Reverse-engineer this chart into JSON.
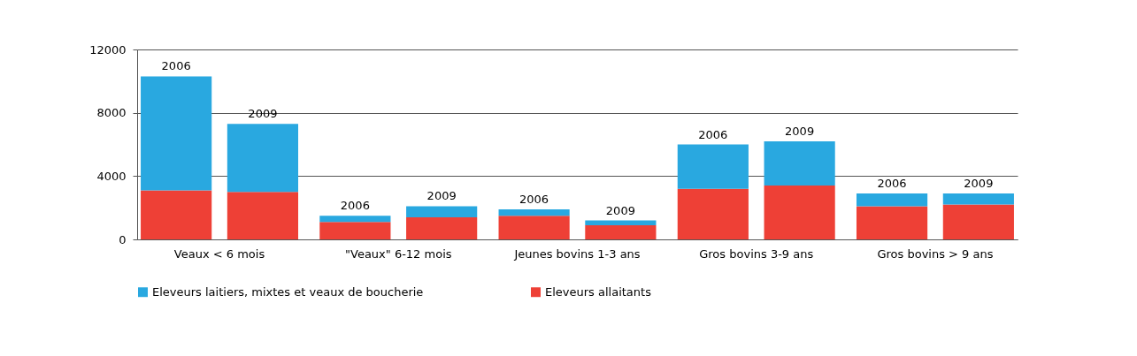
{
  "chart_data": {
    "type": "bar",
    "stacked": true,
    "categories": [
      null,
      null,
      null,
      null,
      null,
      null,
      null,
      null,
      null,
      null
    ],
    "annotations": [
      "Veaux < 6 mois",
      "\"Veaux\" 6-12 mois",
      "Jeunes bovins 1-3 ans",
      "Gros bovins 3-9 ans",
      "Gros bovins > 9 ans",
      "2006",
      "2009",
      "2006",
      "2009",
      "2006",
      "2009",
      "2006",
      "2009",
      "2006",
      "2009"
    ],
    "series": [
      {
        "name": "Eleveurs allaitants",
        "color": "#ee4036",
        "values": [
          3100,
          3000,
          1100,
          1400,
          1500,
          900,
          3200,
          3400,
          2100,
          2200
        ]
      },
      {
        "name": "Eleveurs laitiers, mixtes et veaux de boucherie",
        "color": "#29a8e0",
        "values": [
          7200,
          4300,
          400,
          700,
          400,
          300,
          2800,
          2800,
          800,
          700
        ]
      }
    ],
    "ylim": [
      0,
      12000
    ],
    "yticks": [
      0,
      4000,
      8000,
      12000
    ],
    "grid": "y",
    "legend": "bottom"
  }
}
